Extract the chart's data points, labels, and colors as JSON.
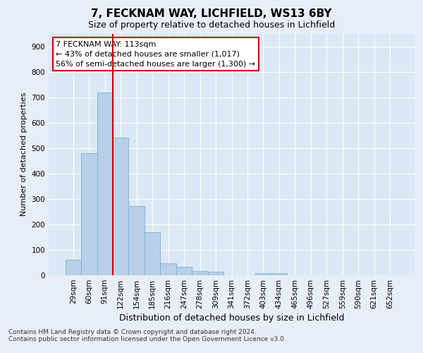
{
  "title_line1": "7, FECKNAM WAY, LICHFIELD, WS13 6BY",
  "title_line2": "Size of property relative to detached houses in Lichfield",
  "xlabel": "Distribution of detached houses by size in Lichfield",
  "ylabel": "Number of detached properties",
  "categories": [
    "29sqm",
    "60sqm",
    "91sqm",
    "122sqm",
    "154sqm",
    "185sqm",
    "216sqm",
    "247sqm",
    "278sqm",
    "309sqm",
    "341sqm",
    "372sqm",
    "403sqm",
    "434sqm",
    "465sqm",
    "496sqm",
    "527sqm",
    "559sqm",
    "590sqm",
    "621sqm",
    "652sqm"
  ],
  "values": [
    62,
    480,
    718,
    542,
    271,
    170,
    47,
    33,
    16,
    13,
    0,
    0,
    8,
    8,
    0,
    0,
    0,
    0,
    0,
    0,
    0
  ],
  "bar_color": "#b8d0e8",
  "bar_edge_color": "#7aafd4",
  "vline_color": "#cc0000",
  "ylim": [
    0,
    950
  ],
  "yticks": [
    0,
    100,
    200,
    300,
    400,
    500,
    600,
    700,
    800,
    900
  ],
  "annotation_text": "7 FECKNAM WAY: 113sqm\n← 43% of detached houses are smaller (1,017)\n56% of semi-detached houses are larger (1,300) →",
  "annotation_box_color": "#ffffff",
  "annotation_box_edge": "#cc0000",
  "footer_text": "Contains HM Land Registry data © Crown copyright and database right 2024.\nContains public sector information licensed under the Open Government Licence v3.0.",
  "background_color": "#e8eef8",
  "plot_background": "#dce8f5",
  "grid_color": "#ffffff",
  "title1_fontsize": 11,
  "title2_fontsize": 9,
  "ylabel_fontsize": 8,
  "xlabel_fontsize": 9,
  "tick_fontsize": 7.5,
  "annotation_fontsize": 8,
  "footer_fontsize": 6.5
}
